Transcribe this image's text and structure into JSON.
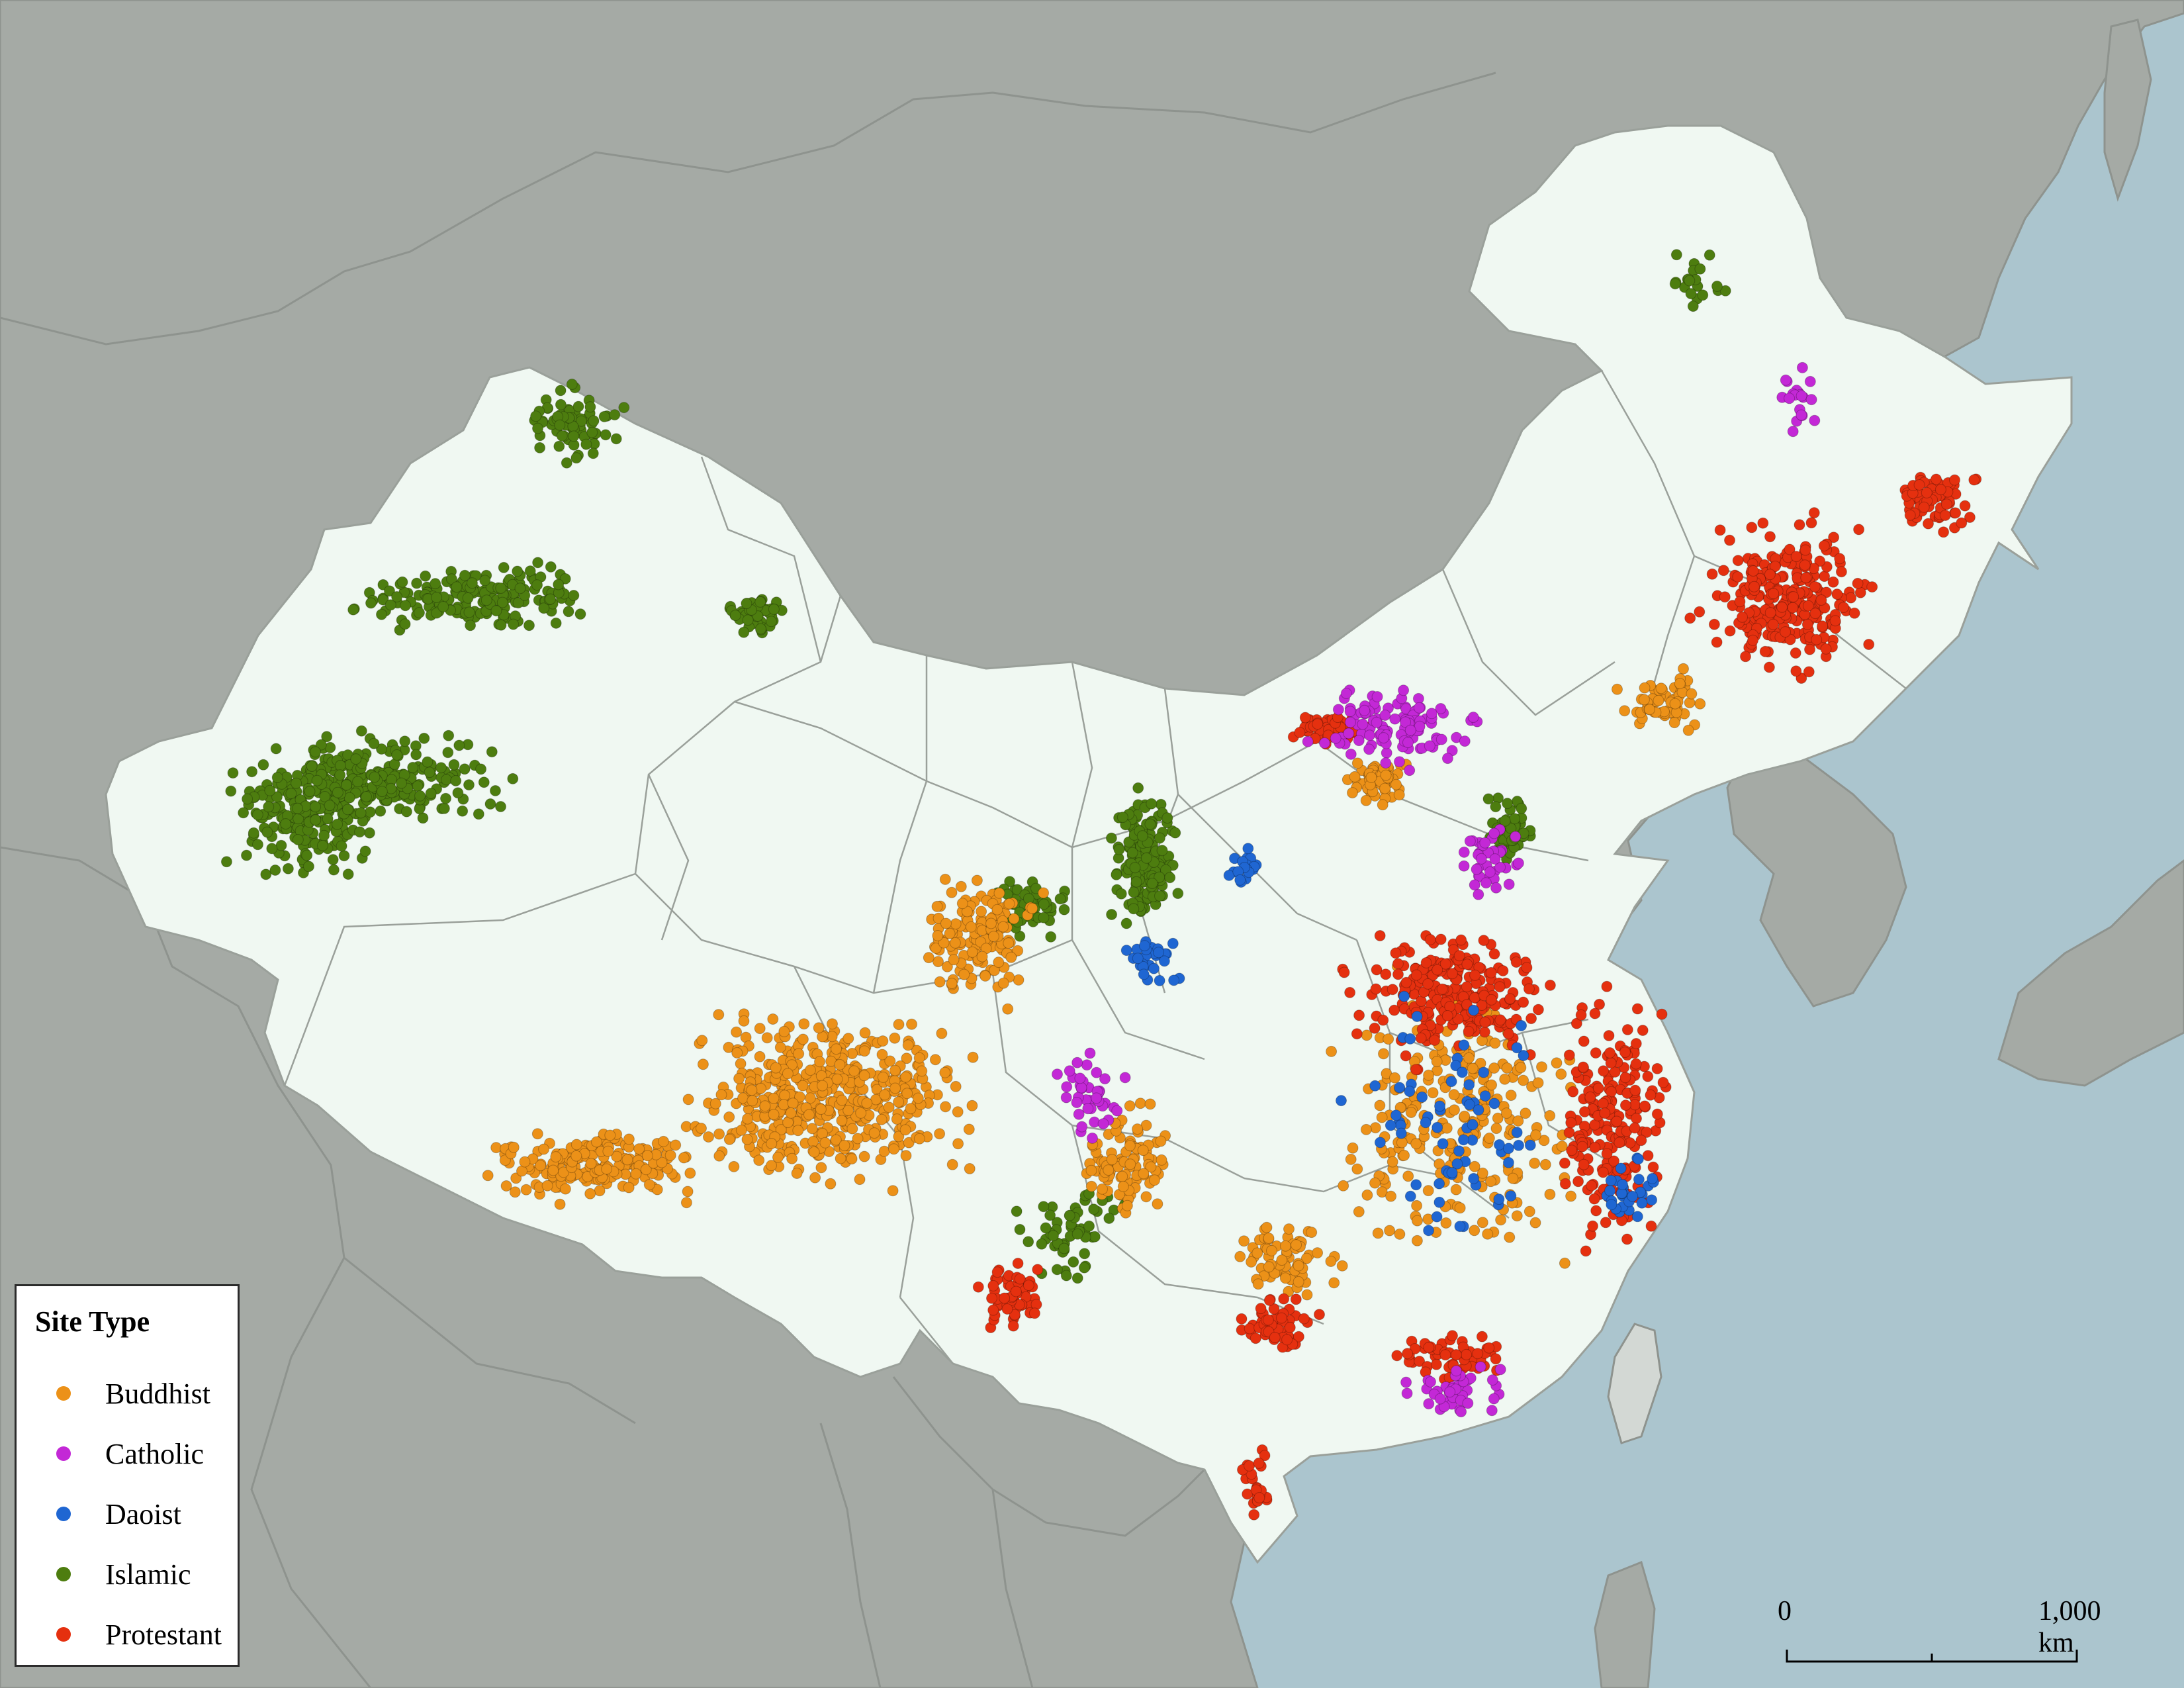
{
  "colors": {
    "water": "#abc5ce",
    "land": "#a5aaa5",
    "land_border": "#8e938e",
    "china": "#f0f8f2",
    "china_border": "#9aa09a",
    "buddhist": "#ec9118",
    "catholic": "#c328d6",
    "daoist": "#1f66d2",
    "islamic": "#4d7d0f",
    "protestant": "#e5300f"
  },
  "legend": {
    "title": "Site Type",
    "items": [
      {
        "key": "buddhist",
        "label": "Buddhist",
        "icon": "circle-marker"
      },
      {
        "key": "catholic",
        "label": "Catholic",
        "icon": "circle-marker"
      },
      {
        "key": "daoist",
        "label": "Daoist",
        "icon": "circle-marker"
      },
      {
        "key": "islamic",
        "label": "Islamic",
        "icon": "circle-marker"
      },
      {
        "key": "protestant",
        "label": "Protestant",
        "icon": "circle-marker"
      }
    ]
  },
  "scale": {
    "start_label": "0",
    "end_label": "1,000 km"
  }
}
